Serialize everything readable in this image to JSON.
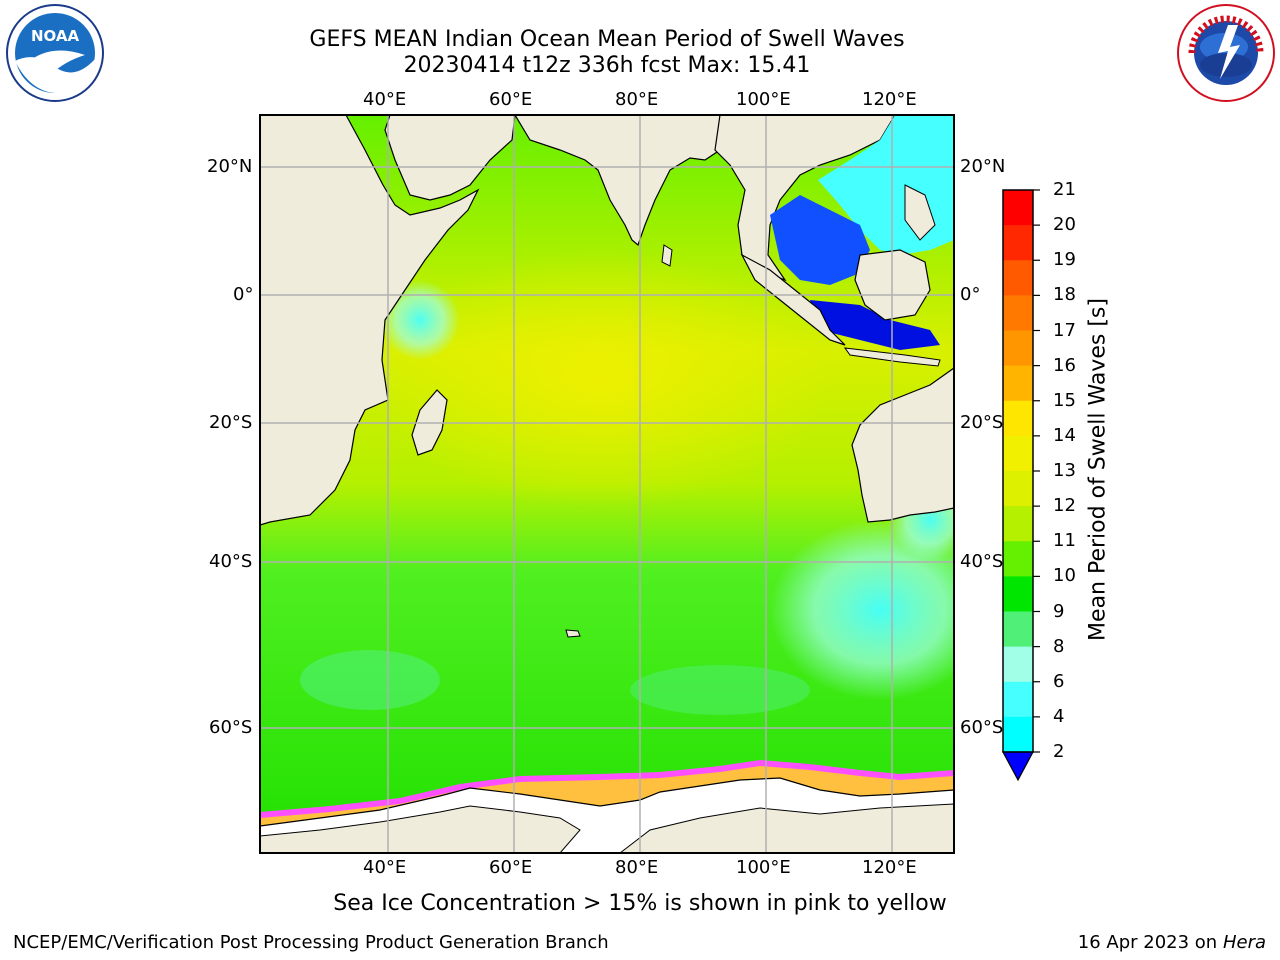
{
  "header": {
    "title_line1": "GEFS MEAN Indian Ocean Mean Period of Swell Waves",
    "title_line2": "20230414 t12z 336h fcst   Max: 15.41"
  },
  "logos": {
    "left": {
      "name": "noaa-logo",
      "text": "NOAA"
    },
    "right": {
      "name": "nws-logo",
      "text": "NATIONAL WEATHER SERVICE"
    }
  },
  "map": {
    "lon_ticks": [
      "40°E",
      "60°E",
      "80°E",
      "100°E",
      "120°E"
    ],
    "lat_ticks_left": [
      "20°N",
      "0°",
      "20°S",
      "40°S",
      "60°S"
    ],
    "lat_ticks_right": [
      "20°N",
      "0°",
      "20°S",
      "40°S",
      "60°S"
    ],
    "colors": {
      "land": "#efecdc",
      "ice": "#ffffff",
      "grid": "#b0b0b0"
    }
  },
  "colorbar": {
    "label": "Mean Period of Swell Waves [s]",
    "ticks": [
      "21",
      "20",
      "19",
      "18",
      "17",
      "16",
      "15",
      "14",
      "13",
      "12",
      "11",
      "10",
      "9",
      "8",
      "6",
      "4",
      "2"
    ],
    "colors": [
      "#ff0000",
      "#ff2800",
      "#ff5a00",
      "#ff7800",
      "#ff9600",
      "#ffb400",
      "#ffe600",
      "#f0f000",
      "#dcf000",
      "#b4f000",
      "#64f000",
      "#00e600",
      "#50f078",
      "#a0ffe6",
      "#46ffff",
      "#00ffff",
      "#00aaff",
      "#0000ff"
    ]
  },
  "footer": {
    "note": "Sea Ice Concentration > 15% is shown in pink to yellow",
    "credit": "NCEP/EMC/Verification Post Processing Product Generation Branch",
    "date": "16 Apr 2023 on ",
    "host": "Hera"
  }
}
